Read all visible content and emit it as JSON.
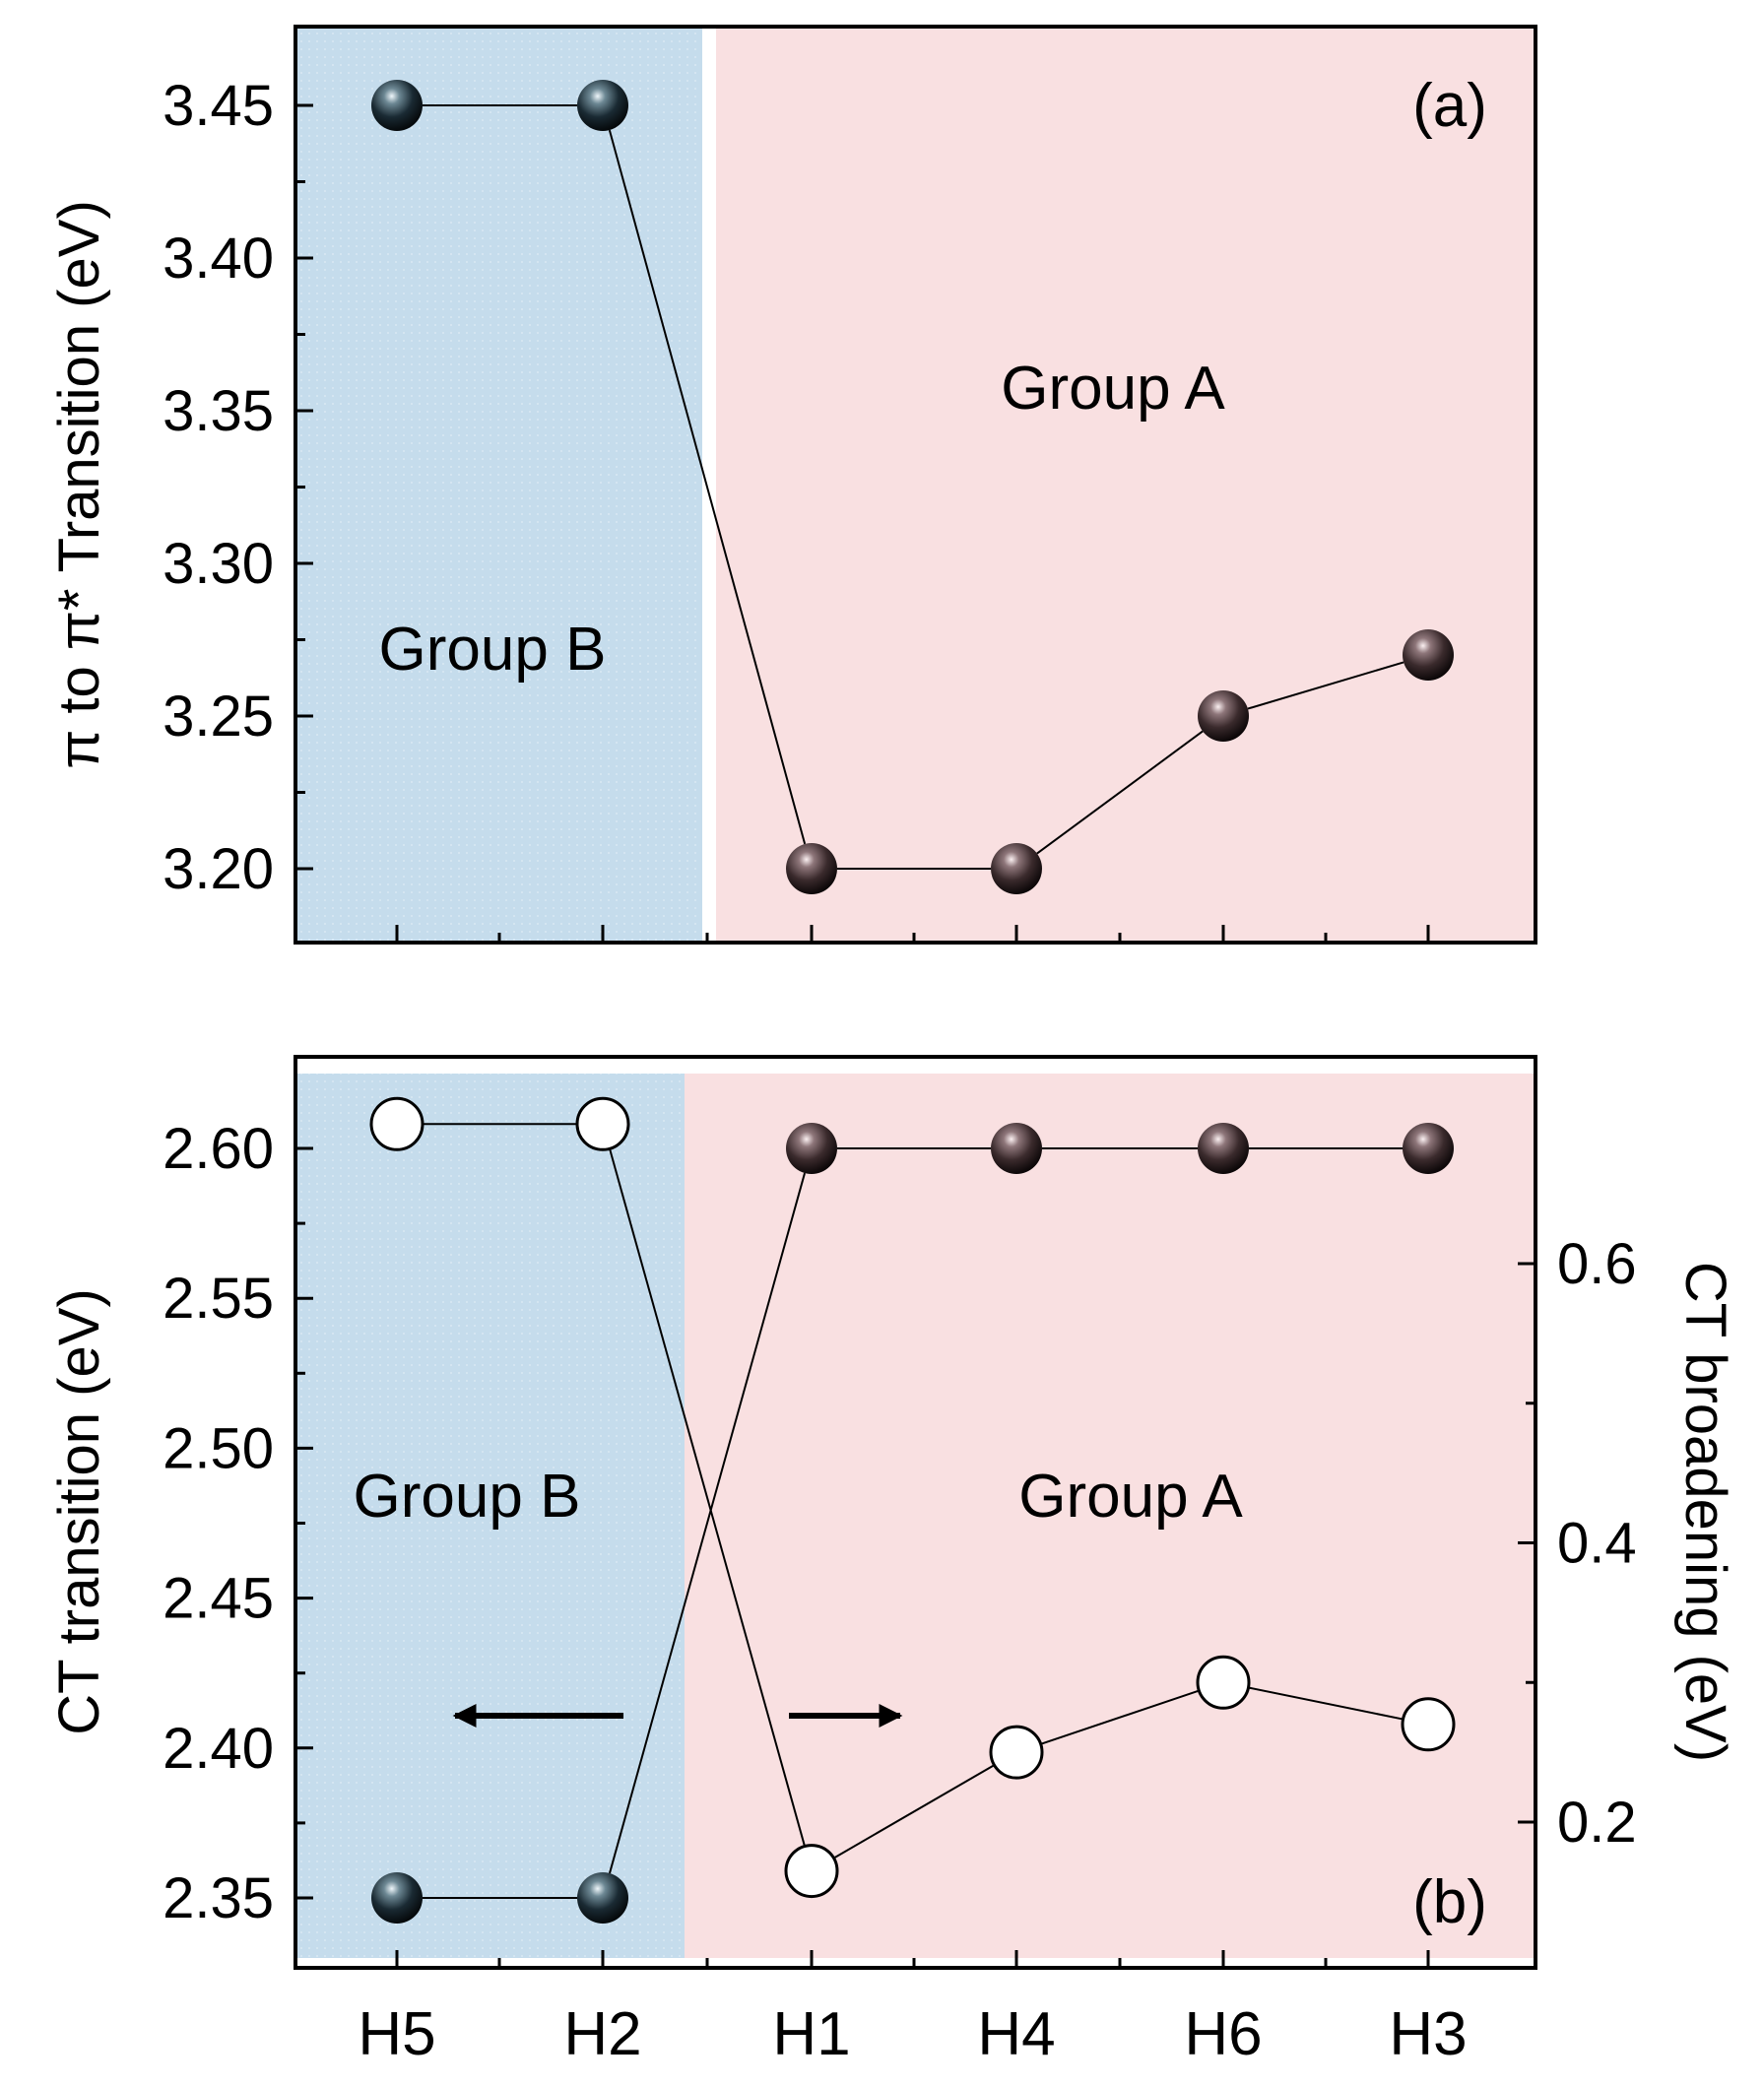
{
  "colors": {
    "group_b_band": "#c5dcec",
    "group_a_band": "#f9e0e1",
    "group_b_text": "#0a1aa8",
    "group_a_text": "#ee1c1c",
    "marker_filled_dark": "#1a2a33",
    "marker_filled_brown": "#3a2a2c",
    "line": "#000000"
  },
  "chart_data": [
    {
      "panel_label": "(a)",
      "type": "line",
      "categories": [
        "H5",
        "H2",
        "H1",
        "H4",
        "H6",
        "H3"
      ],
      "ylabel": "π to π* Transition (eV)",
      "ylim": [
        3.175,
        3.475
      ],
      "yticks": [
        "3.20",
        "3.25",
        "3.30",
        "3.35",
        "3.40",
        "3.45"
      ],
      "ytick_values": [
        3.2,
        3.25,
        3.3,
        3.35,
        3.4,
        3.45
      ],
      "series": [
        {
          "name": "π to π* transition",
          "marker": "filled",
          "values": [
            3.45,
            3.45,
            3.2,
            3.2,
            3.25,
            3.27
          ]
        }
      ],
      "groups": [
        {
          "label": "Group B",
          "from_category": 0,
          "to_category": 1
        },
        {
          "label": "Group A",
          "from_category": 2,
          "to_category": 5
        }
      ]
    },
    {
      "panel_label": "(b)",
      "type": "line",
      "categories": [
        "H5",
        "H2",
        "H1",
        "H4",
        "H6",
        "H3"
      ],
      "ylabel": "CT transition (eV)",
      "ylim": [
        2.325,
        2.625
      ],
      "yticks": [
        "2.35",
        "2.40",
        "2.45",
        "2.50",
        "2.55",
        "2.60"
      ],
      "ytick_values": [
        2.35,
        2.4,
        2.45,
        2.5,
        2.55,
        2.6
      ],
      "ylabel_right": "CT broadening (eV)",
      "ylim_right": [
        0.1,
        0.75
      ],
      "yticks_right": [
        "0.2",
        "0.4",
        "0.6"
      ],
      "ytick_values_right": [
        0.2,
        0.4,
        0.6
      ],
      "series": [
        {
          "name": "CT transition",
          "axis": "left",
          "marker": "filled",
          "values": [
            2.35,
            2.35,
            2.6,
            2.6,
            2.6,
            2.6
          ]
        },
        {
          "name": "CT broadening",
          "axis": "right",
          "marker": "open",
          "values": [
            0.7,
            0.7,
            0.165,
            0.25,
            0.3,
            0.27
          ]
        }
      ],
      "groups": [
        {
          "label": "Group B",
          "from_category": 0,
          "to_category": 1
        },
        {
          "label": "Group A",
          "from_category": 2,
          "to_category": 5
        }
      ],
      "annotations": [
        {
          "type": "arrow",
          "direction": "left",
          "meaning": "left axis series"
        },
        {
          "type": "arrow",
          "direction": "right",
          "meaning": "right axis series"
        }
      ]
    }
  ]
}
